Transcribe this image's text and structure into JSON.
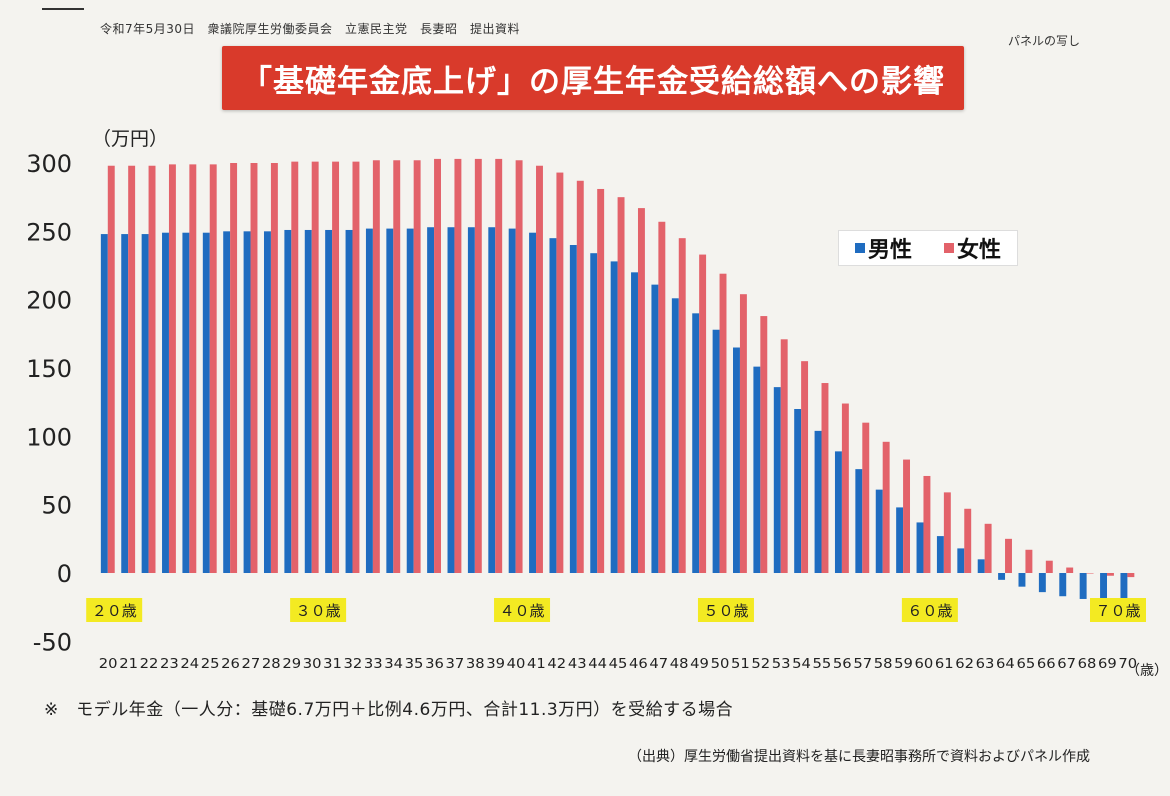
{
  "header": {
    "meta": "令和7年5月30日　衆議院厚生労働委員会　立憲民主党　長妻昭　提出資料",
    "panel_note": "パネルの写し",
    "title": "「基礎年金底上げ」の厚生年金受給総額への影響"
  },
  "note": "※　モデル年金（一人分：基礎6.7万円＋比例4.6万円、合計11.3万円）を受給する場合",
  "source": "（出典）厚生労働省提出資料を基に長妻昭事務所で資料およびパネル作成",
  "colors": {
    "male": "#1f6cc0",
    "female": "#e3626a",
    "highlight": "#f3ea22",
    "title_bg": "#d93a2b"
  },
  "chart_data": {
    "type": "bar",
    "unit_label": "（万円）",
    "x_unit_label": "（歳）",
    "ylim": [
      -50,
      300
    ],
    "yticks": [
      300,
      250,
      200,
      150,
      100,
      50,
      0,
      -50
    ],
    "legend": [
      "男性",
      "女性"
    ],
    "legend_position": "top-right",
    "decade_labels": [
      {
        "age": 20,
        "label": "２０歳"
      },
      {
        "age": 30,
        "label": "３０歳"
      },
      {
        "age": 40,
        "label": "４０歳"
      },
      {
        "age": 50,
        "label": "５０歳"
      },
      {
        "age": 60,
        "label": "６０歳"
      },
      {
        "age": 70,
        "label": "７０歳"
      }
    ],
    "categories": [
      "20",
      "21",
      "22",
      "23",
      "24",
      "25",
      "26",
      "27",
      "28",
      "29",
      "30",
      "31",
      "32",
      "33",
      "34",
      "35",
      "36",
      "37",
      "38",
      "39",
      "40",
      "41",
      "42",
      "43",
      "44",
      "45",
      "46",
      "47",
      "48",
      "49",
      "50",
      "51",
      "52",
      "53",
      "54",
      "55",
      "56",
      "57",
      "58",
      "59",
      "60",
      "61",
      "62",
      "63",
      "64",
      "65",
      "66",
      "67",
      "68",
      "69",
      "70"
    ],
    "series": [
      {
        "name": "男性",
        "values": [
          248,
          248,
          248,
          249,
          249,
          249,
          250,
          250,
          250,
          251,
          251,
          251,
          251,
          252,
          252,
          252,
          253,
          253,
          253,
          253,
          252,
          249,
          245,
          240,
          234,
          228,
          220,
          211,
          201,
          190,
          178,
          165,
          151,
          136,
          120,
          104,
          89,
          76,
          61,
          48,
          37,
          27,
          18,
          10,
          -5,
          -10,
          -14,
          -17,
          -19,
          -20,
          -21
        ]
      },
      {
        "name": "女性",
        "values": [
          298,
          298,
          298,
          299,
          299,
          299,
          300,
          300,
          300,
          301,
          301,
          301,
          301,
          302,
          302,
          302,
          303,
          303,
          303,
          303,
          302,
          298,
          293,
          287,
          281,
          275,
          267,
          257,
          245,
          233,
          219,
          204,
          188,
          171,
          155,
          139,
          124,
          110,
          96,
          83,
          71,
          59,
          47,
          36,
          25,
          17,
          9,
          4,
          0,
          -2,
          -3
        ]
      }
    ]
  }
}
